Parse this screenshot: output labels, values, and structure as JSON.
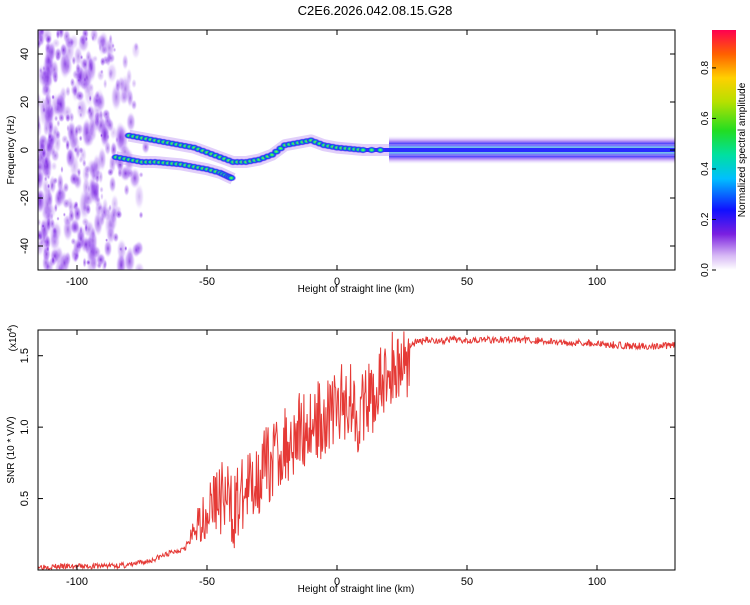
{
  "title": "C2E6.2026.042.08.15.G28",
  "chart_data": [
    {
      "type": "heatmap",
      "xlabel": "Height of straight line (km)",
      "ylabel": "Frequency (Hz)",
      "xlim": [
        -115,
        130
      ],
      "ylim": [
        -50,
        50
      ],
      "xticks": [
        -100,
        -50,
        0,
        50,
        100
      ],
      "yticks": [
        -40,
        -20,
        0,
        20,
        40
      ],
      "noise_region": {
        "x_from": -115,
        "x_to": -72,
        "y_from": -50,
        "y_to": 50
      },
      "lower_trace": {
        "x": [
          -85,
          -80,
          -75,
          -70,
          -65,
          -60,
          -55,
          -50,
          -45,
          -42,
          -40
        ],
        "y": [
          -3,
          -4,
          -5,
          -5,
          -5.5,
          -6,
          -7,
          -8,
          -9.5,
          -11,
          -12
        ]
      },
      "upper_trace": {
        "x": [
          -80,
          -75,
          -70,
          -65,
          -60,
          -55,
          -50,
          -45,
          -40,
          -35,
          -30,
          -25,
          -20,
          -15,
          -10,
          -5,
          0,
          5,
          10,
          20,
          40,
          60,
          80,
          100,
          130
        ],
        "y": [
          6,
          5,
          4,
          3,
          2,
          1,
          -1,
          -3,
          -5,
          -5,
          -4,
          -2,
          2,
          3,
          4,
          2,
          1,
          0.5,
          0,
          0,
          0,
          0,
          0,
          0,
          0
        ]
      },
      "colorbar": {
        "label": "Normalized spectral amplitude",
        "ticks": [
          "0.0",
          "0.2",
          "0.4",
          "0.6",
          "0.8"
        ],
        "range": [
          0,
          0.95
        ]
      }
    },
    {
      "type": "line",
      "xlabel": "Height of straight line (km)",
      "ylabel": "SNR (10 * V/V)",
      "y_multiplier": "(x10",
      "y_multiplier_exp": "4",
      "y_multiplier_close": ")",
      "xlim": [
        -115,
        130
      ],
      "ylim": [
        0,
        1.68
      ],
      "xticks": [
        -100,
        -50,
        0,
        50,
        100
      ],
      "yticks": [
        "0.5",
        "1.0",
        "1.5"
      ],
      "ytick_values": [
        0.5,
        1.0,
        1.5
      ],
      "series_color": "#e53935",
      "x": [
        -115,
        -100,
        -80,
        -72,
        -65,
        -60,
        -57,
        -55,
        -52,
        -50,
        -48,
        -45,
        -42,
        -40,
        -38,
        -35,
        -32,
        -30,
        -28,
        -25,
        -22,
        -20,
        -18,
        -15,
        -12,
        -10,
        -8,
        -5,
        -2,
        0,
        2,
        5,
        8,
        10,
        12,
        14,
        16,
        18,
        20,
        22,
        25,
        28,
        30,
        35,
        40,
        45,
        50,
        60,
        70,
        80,
        85,
        90,
        95,
        100,
        110,
        120,
        130
      ],
      "y": [
        0.03,
        0.03,
        0.04,
        0.07,
        0.12,
        0.15,
        0.2,
        0.3,
        0.4,
        0.45,
        0.55,
        0.6,
        0.55,
        0.5,
        0.55,
        0.62,
        0.7,
        0.75,
        0.8,
        0.85,
        0.92,
        0.95,
        1.0,
        1.05,
        1.08,
        1.1,
        1.12,
        1.15,
        1.2,
        1.22,
        1.25,
        1.3,
        1.18,
        1.2,
        1.25,
        1.3,
        1.35,
        1.4,
        1.45,
        1.5,
        1.55,
        1.58,
        1.6,
        1.62,
        1.61,
        1.62,
        1.62,
        1.62,
        1.62,
        1.61,
        1.6,
        1.6,
        1.6,
        1.59,
        1.58,
        1.57,
        1.58
      ]
    }
  ]
}
